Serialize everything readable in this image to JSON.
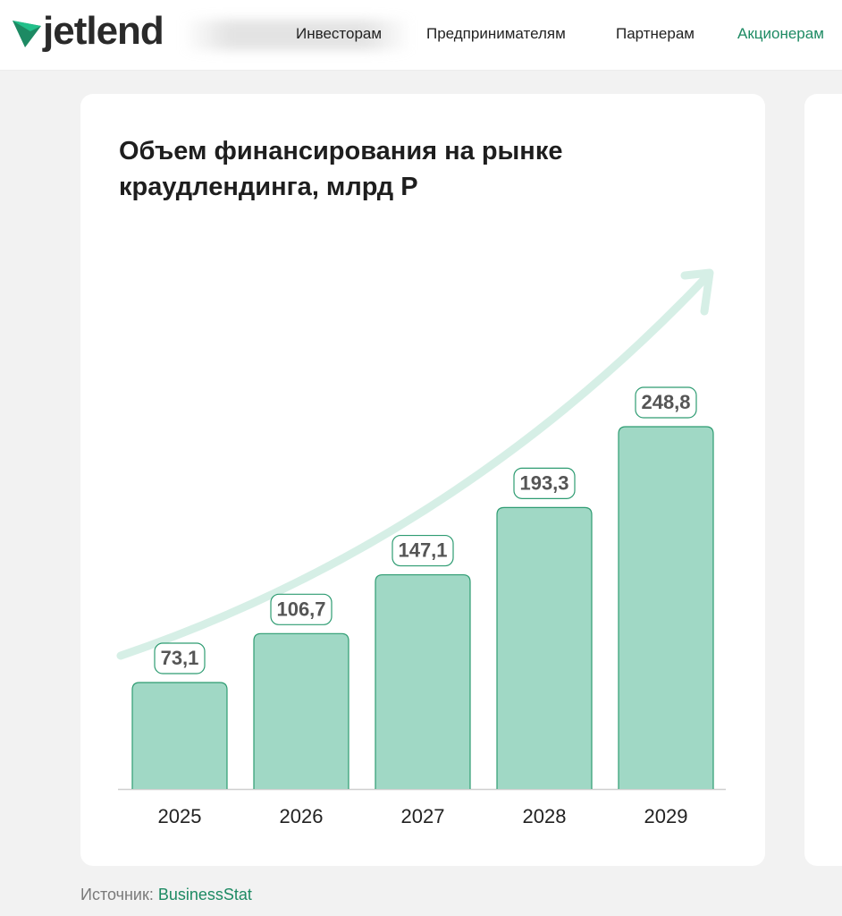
{
  "header": {
    "logo_text": "jetlend",
    "nav": [
      {
        "label": "Инвесторам",
        "active": false
      },
      {
        "label": "Предпринимателям",
        "active": false
      },
      {
        "label": "Партнерам",
        "active": false
      },
      {
        "label": "Акционерам",
        "active": true
      }
    ]
  },
  "source": {
    "label": "Источник:",
    "link": "BusinessStat"
  },
  "colors": {
    "accent": "#1d8a63",
    "bar_fill": "#a0d8c5",
    "bar_stroke": "#2e9c72",
    "trend_arrow": "#d6efe6"
  },
  "chart_data": {
    "type": "bar",
    "title": "Объем финансирования на рынке краудлендинга, млрд Р",
    "xlabel": "",
    "ylabel": "",
    "categories": [
      "2025",
      "2026",
      "2027",
      "2028",
      "2029"
    ],
    "values": [
      73.1,
      106.7,
      147.1,
      193.3,
      248.8
    ],
    "value_labels": [
      "73,1",
      "106,7",
      "147,1",
      "193,3",
      "248,8"
    ],
    "ylim": [
      0,
      248.8
    ],
    "grid": false,
    "legend": "none",
    "annotations": [
      "trend-arrow"
    ]
  }
}
